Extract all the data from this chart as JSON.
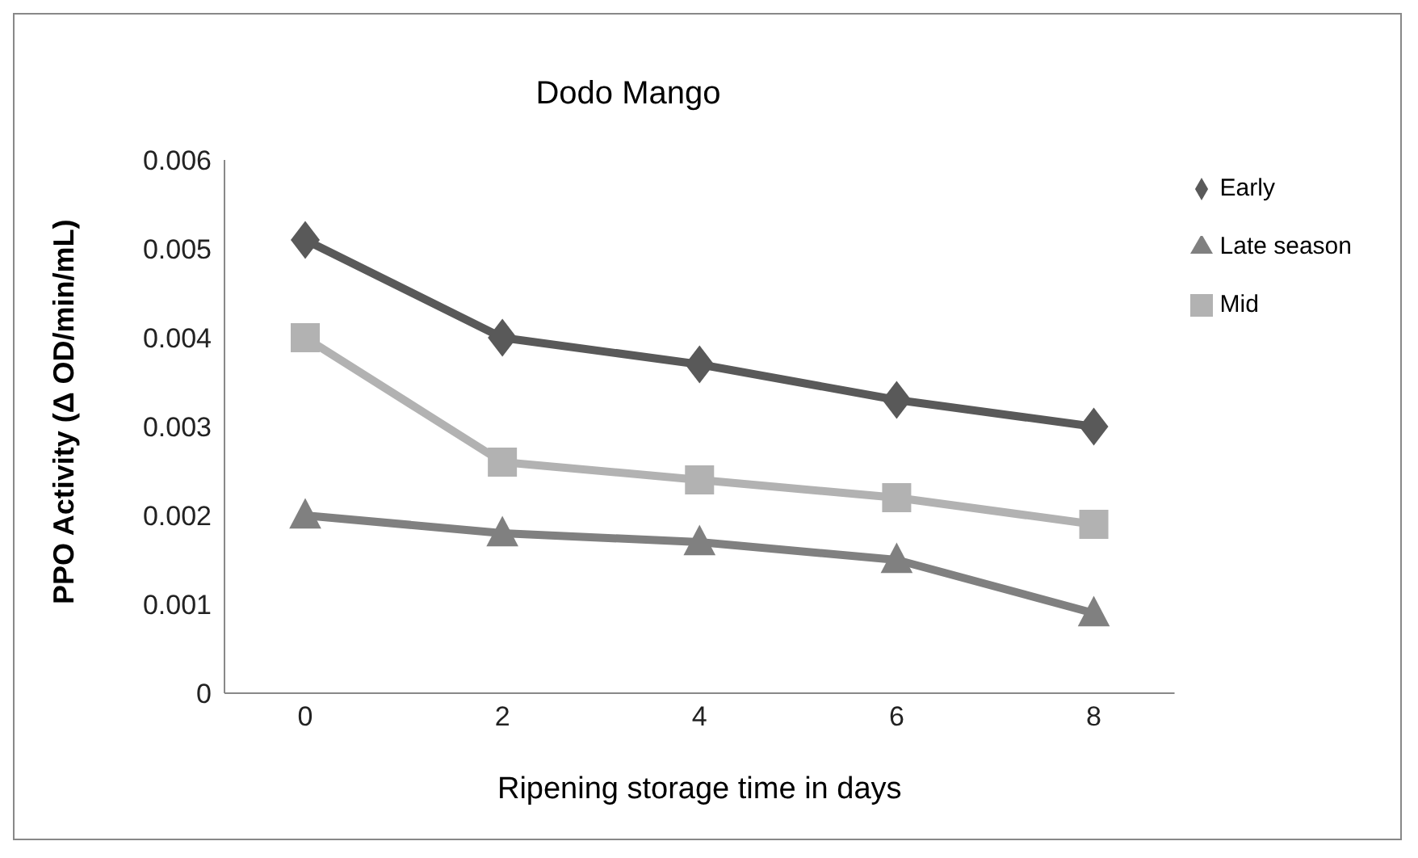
{
  "chart_data": {
    "type": "line",
    "title": "Dodo Mango",
    "xlabel": "Ripening storage time in days",
    "ylabel": "PPO Activity (Δ OD/min/mL)",
    "categories": [
      "0",
      "2",
      "4",
      "6",
      "8"
    ],
    "series": [
      {
        "name": "Early",
        "color": "#595959",
        "marker": "diamond",
        "values": [
          0.0051,
          0.004,
          0.0037,
          0.0033,
          0.003
        ]
      },
      {
        "name": "Mid",
        "color": "#b2b2b2",
        "marker": "square",
        "values": [
          0.004,
          0.0026,
          0.0024,
          0.0022,
          0.0019
        ]
      },
      {
        "name": "Late season",
        "color": "#808080",
        "marker": "triangle",
        "values": [
          0.002,
          0.0018,
          0.0017,
          0.0015,
          0.0009
        ]
      }
    ],
    "ylim": [
      0,
      0.006
    ],
    "yticks": [
      0,
      0.001,
      0.002,
      0.003,
      0.004,
      0.005,
      0.006
    ],
    "grid": false,
    "legend": "right",
    "line_style": "solid"
  }
}
